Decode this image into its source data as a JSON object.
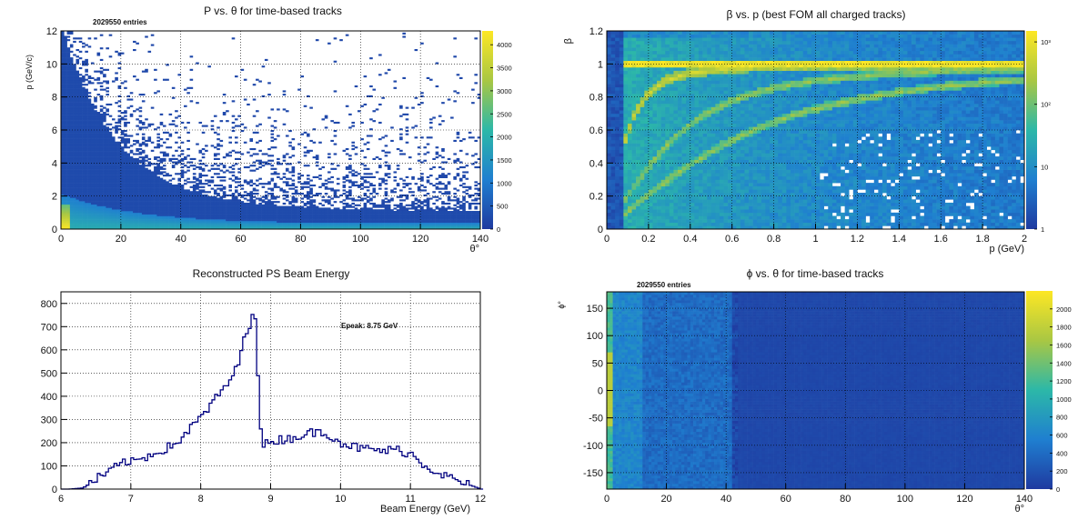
{
  "colors": {
    "palette_low": "#1f3aa0",
    "palette_mid1": "#1f7fd0",
    "palette_mid2": "#2cb8a8",
    "palette_mid3": "#a9c743",
    "palette_high": "#fde724",
    "hist_line": "#000080",
    "grid": "#000000"
  },
  "chart_data": [
    {
      "id": "p-vs-theta",
      "type": "heatmap",
      "title": "P vs. θ for time-based tracks",
      "stat_label": "2029550 entries",
      "xlabel": "θ°",
      "ylabel": "p (GeV/c)",
      "xlim": [
        0,
        140
      ],
      "ylim": [
        0,
        12
      ],
      "x_ticks": [
        "0",
        "20",
        "40",
        "60",
        "80",
        "100",
        "120",
        "140"
      ],
      "y_ticks": [
        "0",
        "2",
        "4",
        "6",
        "8",
        "10",
        "12"
      ],
      "z_ticks": [
        "0",
        "500",
        "1000",
        "1500",
        "2000",
        "2500",
        "3000",
        "3500",
        "4000"
      ],
      "zlim": [
        0,
        4300
      ],
      "log_z": false,
      "grid": true
    },
    {
      "id": "beta-vs-p",
      "type": "heatmap",
      "title": "β vs. p (best FOM all charged tracks)",
      "xlabel": "p (GeV)",
      "ylabel": "β",
      "xlim": [
        0,
        2
      ],
      "ylim": [
        0,
        1.2
      ],
      "x_ticks": [
        "0",
        "0.2",
        "0.4",
        "0.6",
        "0.8",
        "1",
        "1.2",
        "1.4",
        "1.6",
        "1.8",
        "2"
      ],
      "y_ticks": [
        "0",
        "0.2",
        "0.4",
        "0.6",
        "0.8",
        "1",
        "1.2"
      ],
      "z_ticks": [
        "1",
        "10",
        "10²",
        "10³"
      ],
      "zlim": [
        1,
        1500
      ],
      "log_z": true,
      "grid": true
    },
    {
      "id": "beam-energy",
      "type": "line",
      "title": "Reconstructed PS Beam Energy",
      "xlabel": "Beam Energy (GeV)",
      "ylabel": "",
      "xlim": [
        6,
        12
      ],
      "ylim": [
        0,
        850
      ],
      "x_ticks": [
        "6",
        "7",
        "8",
        "9",
        "10",
        "11",
        "12"
      ],
      "y_ticks": [
        "0",
        "100",
        "200",
        "300",
        "400",
        "500",
        "600",
        "700",
        "800"
      ],
      "annotation": "Epeak: 8.75 GeV",
      "grid": true,
      "points": [
        [
          6.1,
          0
        ],
        [
          6.3,
          5
        ],
        [
          6.5,
          45
        ],
        [
          6.7,
          80
        ],
        [
          6.9,
          120
        ],
        [
          7.0,
          115
        ],
        [
          7.2,
          140
        ],
        [
          7.4,
          165
        ],
        [
          7.6,
          190
        ],
        [
          7.8,
          250
        ],
        [
          8.0,
          315
        ],
        [
          8.2,
          390
        ],
        [
          8.4,
          470
        ],
        [
          8.5,
          520
        ],
        [
          8.6,
          640
        ],
        [
          8.7,
          730
        ],
        [
          8.75,
          815
        ],
        [
          8.8,
          500
        ],
        [
          8.85,
          180
        ],
        [
          9.0,
          210
        ],
        [
          9.2,
          215
        ],
        [
          9.4,
          230
        ],
        [
          9.6,
          245
        ],
        [
          9.8,
          240
        ],
        [
          10.0,
          200
        ],
        [
          10.2,
          180
        ],
        [
          10.4,
          170
        ],
        [
          10.6,
          165
        ],
        [
          10.8,
          170
        ],
        [
          11.0,
          150
        ],
        [
          11.2,
          100
        ],
        [
          11.4,
          70
        ],
        [
          11.6,
          40
        ],
        [
          11.8,
          20
        ],
        [
          12.0,
          0
        ]
      ]
    },
    {
      "id": "phi-vs-theta",
      "type": "heatmap",
      "title": "ϕ vs. θ for time-based tracks",
      "stat_label": "2029550 entries",
      "xlabel": "θ°",
      "ylabel": "ϕ°",
      "xlim": [
        0,
        140
      ],
      "ylim": [
        -180,
        180
      ],
      "x_ticks": [
        "0",
        "20",
        "40",
        "60",
        "80",
        "100",
        "120",
        "140"
      ],
      "y_ticks": [
        "-150",
        "-100",
        "-50",
        "0",
        "50",
        "100",
        "150"
      ],
      "z_ticks": [
        "0",
        "200",
        "400",
        "600",
        "800",
        "1000",
        "1200",
        "1400",
        "1600",
        "1800",
        "2000"
      ],
      "zlim": [
        0,
        2200
      ],
      "log_z": false,
      "grid": true
    }
  ]
}
